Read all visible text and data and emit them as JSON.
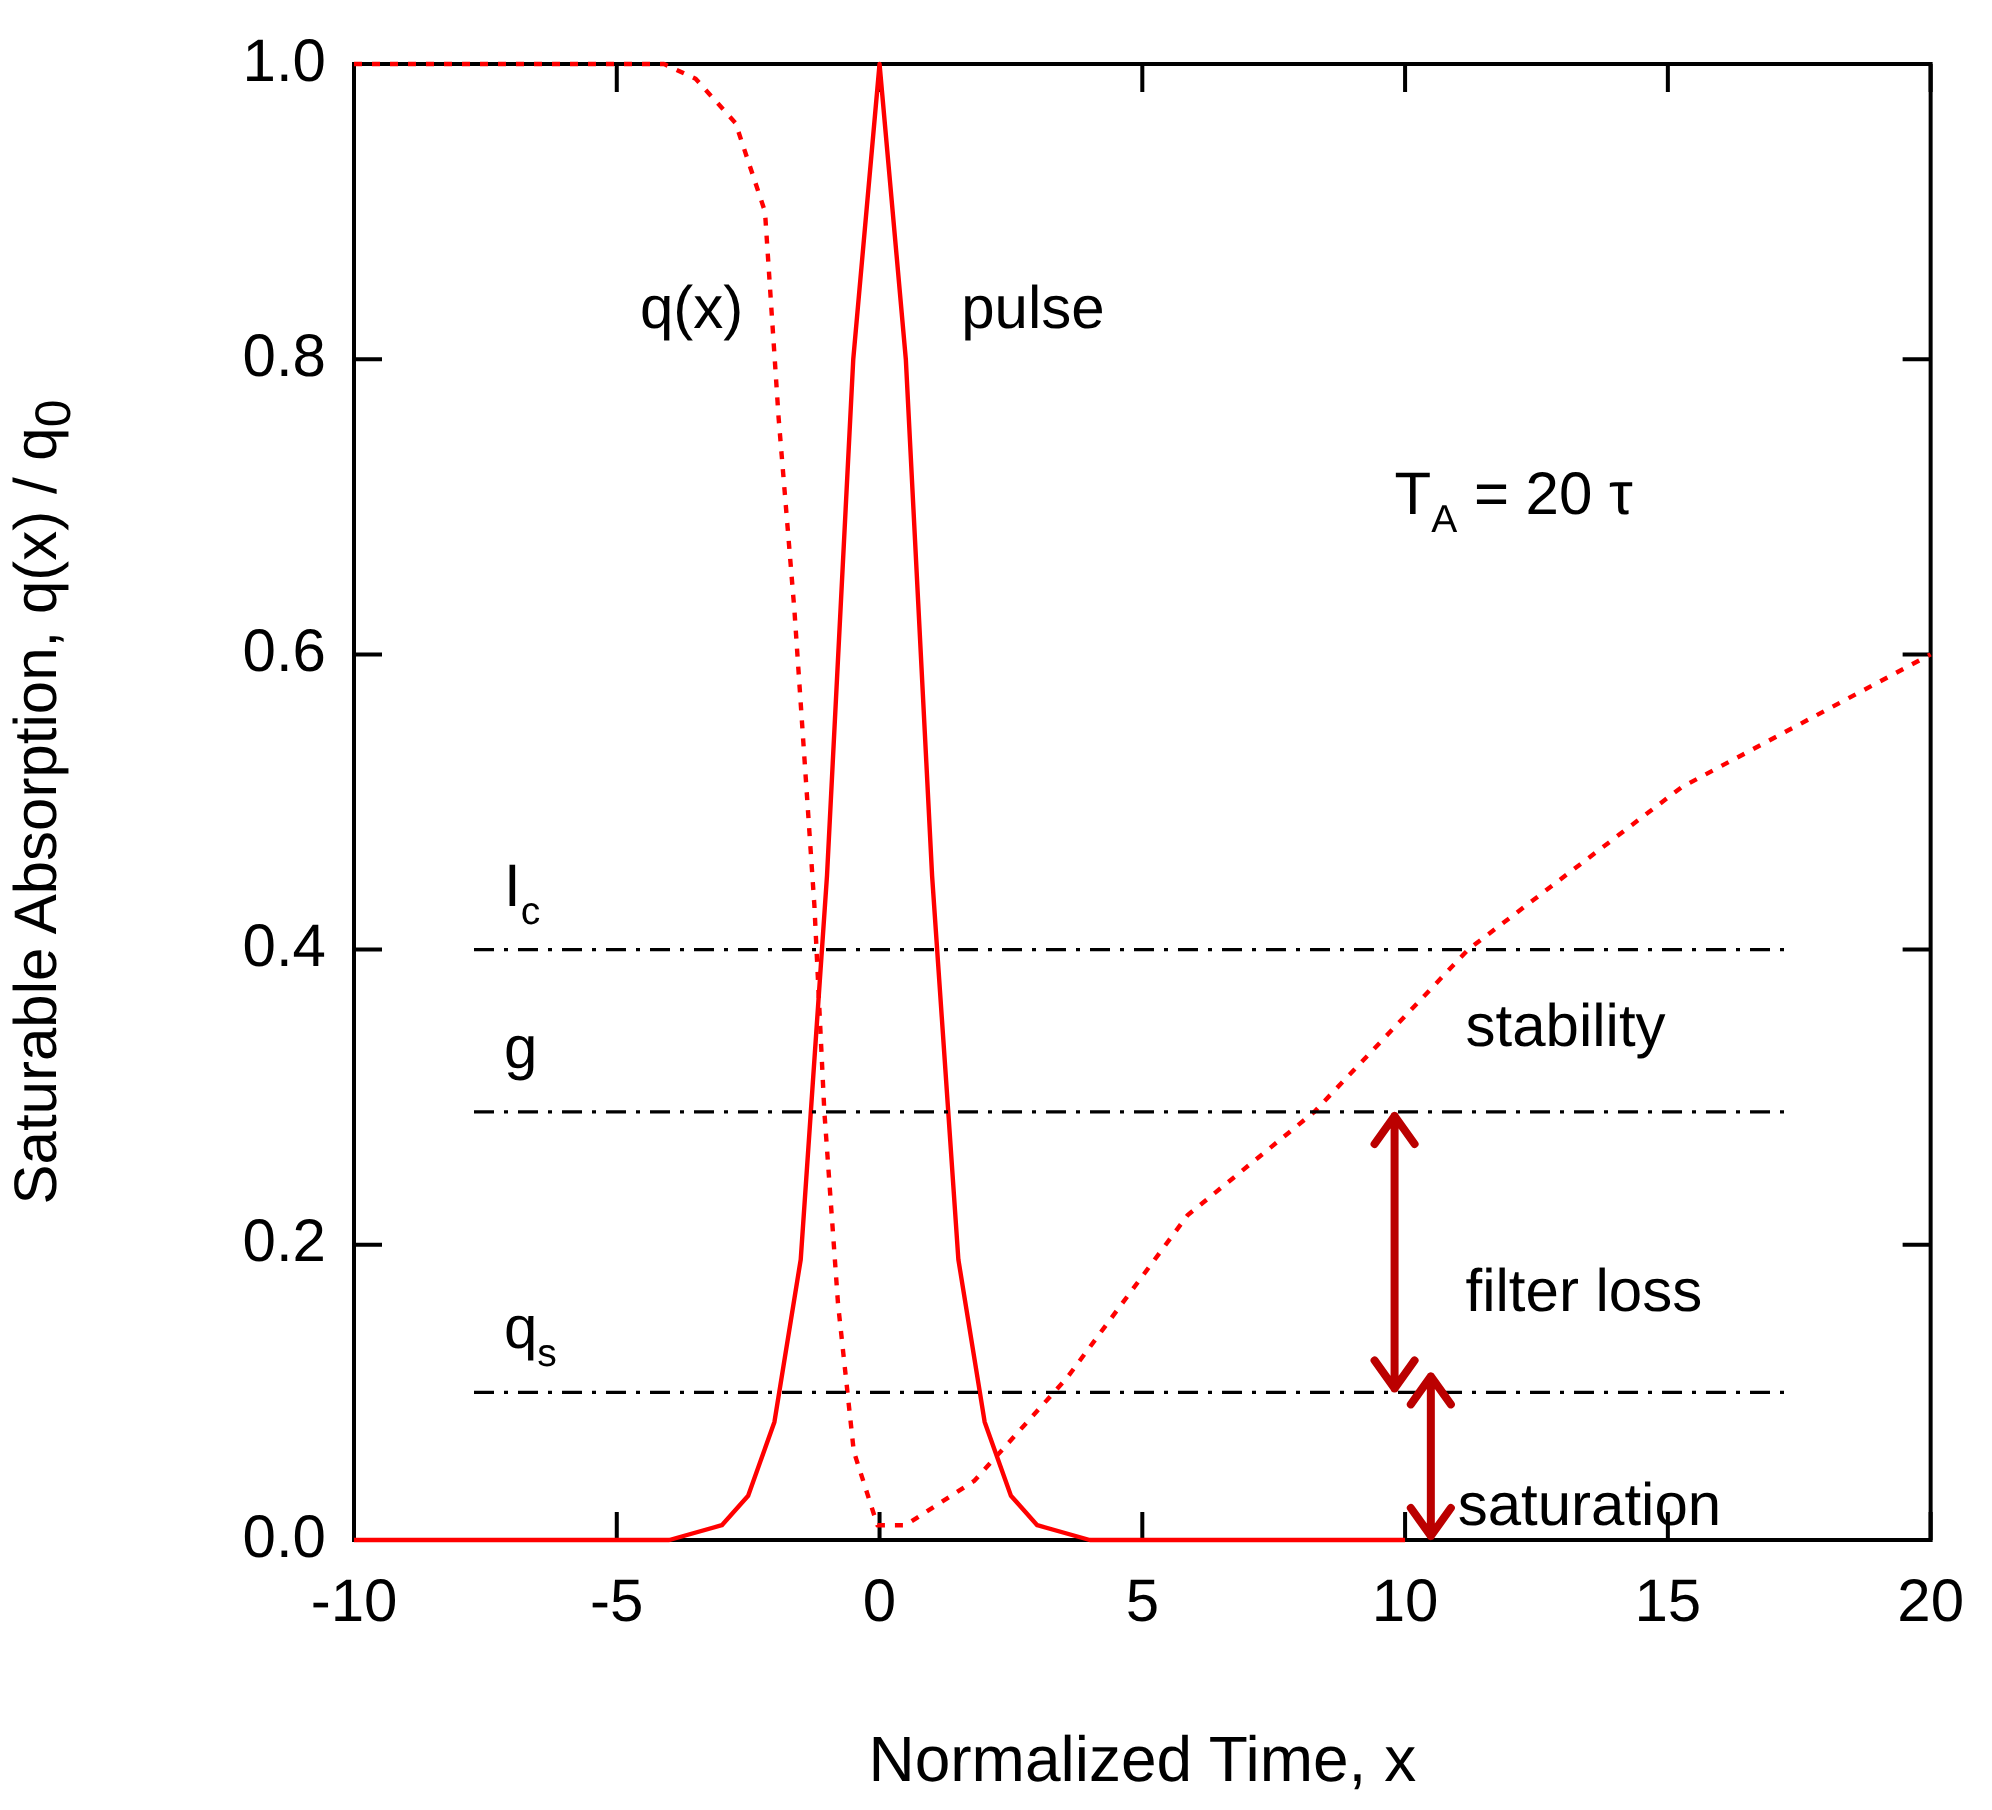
{
  "chart_data": {
    "type": "line",
    "xlabel": "Normalized Time, x",
    "ylabel": "Saturable Absorption, q(x) / q$_{0}$",
    "xlim": [
      -10,
      20
    ],
    "xticks": [
      -10,
      -5,
      0,
      5,
      10,
      15,
      20
    ],
    "ylim": [
      0,
      1
    ],
    "yticks": [
      {
        "value": 0,
        "label": "0.0"
      },
      {
        "value": 0.2,
        "label": "0.2"
      },
      {
        "value": 0.4,
        "label": "0.4"
      },
      {
        "value": 0.6,
        "label": "0.6"
      },
      {
        "value": 0.8,
        "label": "0.8"
      },
      {
        "value": 1,
        "label": "1.0"
      }
    ],
    "legend": false,
    "series": [
      {
        "name": "q(x)",
        "color": "#ff0000",
        "line_style": "dotted",
        "x": [
          -10,
          -4.1,
          -3.5,
          -2.74,
          -2.18,
          -1.92,
          -1.62,
          -1.24,
          -1.05,
          -0.79,
          -0.49,
          -0.04,
          0.26,
          0.49,
          1.8,
          3.57,
          5.86,
          8.27,
          11.2,
          15.26,
          20
        ],
        "values": [
          1,
          1,
          0.99,
          0.96,
          0.9,
          0.76,
          0.63,
          0.43,
          0.29,
          0.16,
          0.06,
          0.01,
          0.01,
          0.01,
          0.04,
          0.11,
          0.22,
          0.29,
          0.4,
          0.51,
          0.6
        ]
      },
      {
        "name": "pulse",
        "color": "#ff0000",
        "line_style": "solid",
        "x": [
          -10,
          -4,
          -3,
          -2.5,
          -2,
          -1.5,
          -1,
          -0.5,
          0,
          0.5,
          1,
          1.5,
          2,
          2.5,
          3,
          4,
          10
        ],
        "values": [
          0,
          0,
          0.01,
          0.03,
          0.08,
          0.19,
          0.45,
          0.8,
          1,
          0.8,
          0.45,
          0.19,
          0.08,
          0.03,
          0.01,
          0,
          0
        ]
      }
    ],
    "ref_lines": [
      {
        "axis": "y",
        "value": 0.4,
        "label": "I$_{c}$",
        "color": "#000000",
        "line_style": "dashed"
      },
      {
        "axis": "y",
        "value": 0.29,
        "label": "g",
        "color": "#000000",
        "line_style": "dashed"
      },
      {
        "axis": "y",
        "value": 0.1,
        "label": "q$_{s}$",
        "color": "#000000",
        "line_style": "dashed"
      }
    ],
    "annotations": [
      "T$_{A}$ = 20 τ",
      "stability",
      "filter loss",
      "saturation"
    ]
  }
}
